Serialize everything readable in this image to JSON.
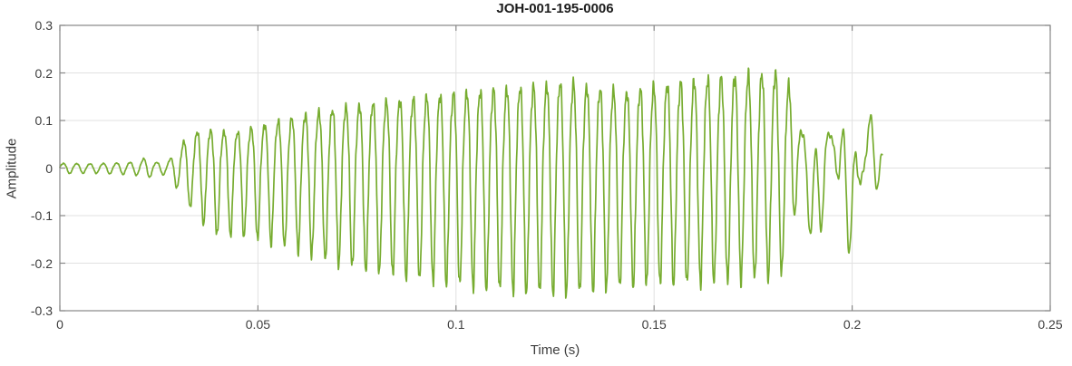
{
  "chart_data": {
    "type": "line",
    "title": "JOH-001-195-0006",
    "xlabel": "Time (s)",
    "ylabel": "Amplitude",
    "xlim": [
      0,
      0.25
    ],
    "ylim": [
      -0.3,
      0.3
    ],
    "xticks": [
      0,
      0.05,
      0.1,
      0.15,
      0.2,
      0.25
    ],
    "xtick_labels": [
      "0",
      "0.05",
      "0.1",
      "0.15",
      "0.2",
      "0.25"
    ],
    "yticks": [
      -0.3,
      -0.2,
      -0.1,
      0,
      0.1,
      0.2,
      0.3
    ],
    "ytick_labels": [
      "-0.3",
      "-0.2",
      "-0.1",
      "0",
      "0.1",
      "0.2",
      "0.3"
    ],
    "grid": true,
    "legend": "none",
    "colors": {
      "line": "#77AC30",
      "grid": "#e1e1e1",
      "axis": "#878787",
      "tick_label": "#3d3d3d",
      "title": "#1c1c1c",
      "background": "#ffffff"
    },
    "series": [
      {
        "name": "waveform",
        "carrier_hz": 295,
        "t_start": 0,
        "t_end": 0.2076,
        "tail_start": 0.1845,
        "tail_low_hz": 108,
        "envelope_t_pos_neg": [
          [
            0.0,
            0.01,
            0.01
          ],
          [
            0.008,
            0.009,
            0.009
          ],
          [
            0.015,
            0.011,
            0.011
          ],
          [
            0.02,
            0.013,
            0.013
          ],
          [
            0.0215,
            0.022,
            0.02
          ],
          [
            0.024,
            0.012,
            0.012
          ],
          [
            0.027,
            0.012,
            0.012
          ],
          [
            0.029,
            0.03,
            0.03
          ],
          [
            0.032,
            0.065,
            0.06
          ],
          [
            0.035,
            0.08,
            0.09
          ],
          [
            0.04,
            0.08,
            0.12
          ],
          [
            0.044,
            0.075,
            0.118
          ],
          [
            0.048,
            0.085,
            0.122
          ],
          [
            0.055,
            0.1,
            0.135
          ],
          [
            0.062,
            0.115,
            0.15
          ],
          [
            0.07,
            0.128,
            0.168
          ],
          [
            0.08,
            0.14,
            0.183
          ],
          [
            0.09,
            0.15,
            0.195
          ],
          [
            0.1,
            0.16,
            0.205
          ],
          [
            0.11,
            0.168,
            0.215
          ],
          [
            0.12,
            0.175,
            0.22
          ],
          [
            0.128,
            0.185,
            0.222
          ],
          [
            0.136,
            0.17,
            0.215
          ],
          [
            0.143,
            0.163,
            0.208
          ],
          [
            0.15,
            0.175,
            0.203
          ],
          [
            0.158,
            0.185,
            0.203
          ],
          [
            0.166,
            0.193,
            0.2
          ],
          [
            0.174,
            0.2,
            0.196
          ],
          [
            0.181,
            0.205,
            0.192
          ],
          [
            0.184,
            0.18,
            0.17
          ],
          [
            0.186,
            0.115,
            0.12
          ],
          [
            0.19,
            0.1,
            0.115
          ],
          [
            0.194,
            0.085,
            0.13
          ],
          [
            0.198,
            0.105,
            0.125
          ],
          [
            0.201,
            0.128,
            0.115
          ],
          [
            0.204,
            0.095,
            0.085
          ],
          [
            0.2076,
            0.055,
            0.045
          ]
        ]
      }
    ]
  }
}
